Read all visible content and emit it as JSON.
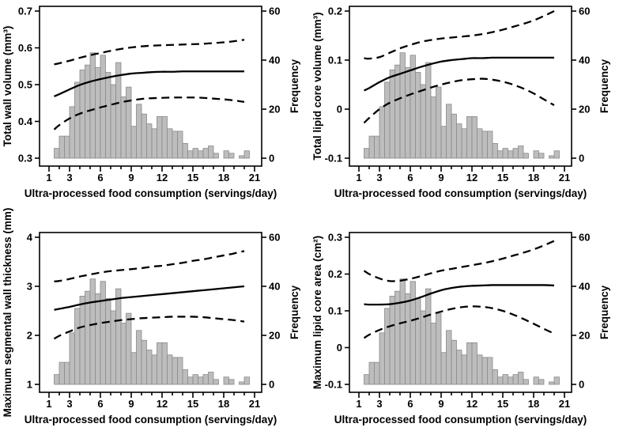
{
  "figure": {
    "xlabel": "Ultra-processed food consumption (servings/day)",
    "x_axis": {
      "lim": [
        1,
        21
      ],
      "major_ticks": [
        1,
        3,
        6,
        9,
        12,
        15,
        18,
        21
      ],
      "minor_tick_step": 1
    },
    "frequency_axis": {
      "label": "Frequency",
      "ticks": [
        0,
        20,
        40,
        60
      ],
      "lim": [
        0,
        60
      ]
    },
    "colors": {
      "bar_fill": "#bdbdbd",
      "bar_stroke": "#8a8a8a",
      "line": "#000000",
      "background": "#ffffff",
      "text": "#000000"
    },
    "grid": "off",
    "legend": "none"
  },
  "histogram": {
    "bin_width": 0.5,
    "centers": [
      1.75,
      2.25,
      2.75,
      3.25,
      3.75,
      4.25,
      4.75,
      5.25,
      5.75,
      6.25,
      6.75,
      7.25,
      7.75,
      8.25,
      8.75,
      9.25,
      9.75,
      10.25,
      10.75,
      11.25,
      11.75,
      12.25,
      12.75,
      13.25,
      13.75,
      14.25,
      14.75,
      15.25,
      15.75,
      16.25,
      16.75,
      17.25,
      18.25,
      18.75,
      19.75,
      20.25
    ],
    "frequencies": [
      4,
      9,
      9,
      21,
      31,
      36,
      38,
      43,
      37,
      42,
      35,
      30,
      39,
      25,
      29,
      13,
      22,
      18,
      14,
      12,
      17,
      17,
      12,
      11,
      11,
      6,
      3,
      4,
      3,
      4,
      5,
      2,
      3,
      2,
      1,
      3
    ]
  },
  "chart_data": [
    {
      "type": "line",
      "position": "top-left",
      "ylabel": "Total wall volume (mm³)",
      "yticks": [
        0.3,
        0.4,
        0.5,
        0.6,
        0.7
      ],
      "ytick_labels": [
        "0.3",
        "0.4",
        "0.5",
        "0.6",
        "0.7"
      ],
      "ylim": [
        0.3,
        0.7
      ],
      "x": [
        1.5,
        2,
        3,
        4,
        5,
        6,
        7,
        8,
        9,
        10,
        11,
        12,
        13,
        14,
        15,
        16,
        17,
        18,
        19,
        20
      ],
      "series": [
        {
          "name": "estimate",
          "line": "solid",
          "y": [
            0.468,
            0.474,
            0.487,
            0.499,
            0.508,
            0.515,
            0.521,
            0.526,
            0.53,
            0.532,
            0.534,
            0.535,
            0.535,
            0.536,
            0.536,
            0.536,
            0.536,
            0.536,
            0.536,
            0.536
          ]
        },
        {
          "name": "upper_ci",
          "line": "dashed",
          "y": [
            0.555,
            0.558,
            0.565,
            0.573,
            0.58,
            0.586,
            0.592,
            0.597,
            0.601,
            0.604,
            0.606,
            0.607,
            0.608,
            0.609,
            0.61,
            0.611,
            0.613,
            0.615,
            0.618,
            0.622
          ]
        },
        {
          "name": "lower_ci",
          "line": "dashed",
          "y": [
            0.378,
            0.39,
            0.408,
            0.421,
            0.43,
            0.438,
            0.445,
            0.452,
            0.457,
            0.461,
            0.463,
            0.464,
            0.465,
            0.465,
            0.465,
            0.464,
            0.462,
            0.46,
            0.457,
            0.453
          ]
        }
      ]
    },
    {
      "type": "line",
      "position": "top-right",
      "ylabel": "Total lipid core volume (mm³)",
      "yticks": [
        -0.1,
        0,
        0.1,
        0.2
      ],
      "ytick_labels": [
        "-0.1",
        "0",
        "0.1",
        "0.2"
      ],
      "ylim": [
        -0.1,
        0.2
      ],
      "x": [
        1.5,
        2,
        3,
        4,
        5,
        6,
        7,
        8,
        9,
        10,
        11,
        12,
        13,
        14,
        15,
        16,
        17,
        18,
        19,
        20
      ],
      "series": [
        {
          "name": "estimate",
          "line": "solid",
          "y": [
            0.038,
            0.043,
            0.055,
            0.065,
            0.072,
            0.079,
            0.086,
            0.092,
            0.097,
            0.1,
            0.102,
            0.104,
            0.104,
            0.105,
            0.105,
            0.105,
            0.105,
            0.105,
            0.105,
            0.105
          ]
        },
        {
          "name": "upper_ci",
          "line": "dashed",
          "y": [
            0.104,
            0.103,
            0.106,
            0.115,
            0.124,
            0.131,
            0.137,
            0.141,
            0.144,
            0.146,
            0.148,
            0.15,
            0.153,
            0.157,
            0.162,
            0.168,
            0.174,
            0.181,
            0.19,
            0.2
          ]
        },
        {
          "name": "lower_ci",
          "line": "dashed",
          "y": [
            -0.028,
            -0.018,
            0.0,
            0.013,
            0.022,
            0.03,
            0.037,
            0.044,
            0.05,
            0.055,
            0.059,
            0.061,
            0.062,
            0.06,
            0.056,
            0.05,
            0.042,
            0.032,
            0.02,
            0.008
          ]
        }
      ]
    },
    {
      "type": "line",
      "position": "bottom-left",
      "ylabel": "Maximum segmental wall thickness (mm)",
      "yticks": [
        1,
        2,
        3,
        4
      ],
      "ytick_labels": [
        "1",
        "2",
        "3",
        "4"
      ],
      "ylim": [
        1,
        4
      ],
      "x": [
        1.5,
        2,
        3,
        4,
        5,
        6,
        7,
        8,
        9,
        10,
        11,
        12,
        13,
        14,
        15,
        16,
        17,
        18,
        19,
        20
      ],
      "series": [
        {
          "name": "estimate",
          "line": "solid",
          "y": [
            2.52,
            2.54,
            2.58,
            2.63,
            2.67,
            2.7,
            2.73,
            2.76,
            2.78,
            2.8,
            2.82,
            2.84,
            2.86,
            2.88,
            2.9,
            2.92,
            2.94,
            2.96,
            2.98,
            3.0
          ]
        },
        {
          "name": "upper_ci",
          "line": "dashed",
          "y": [
            3.1,
            3.11,
            3.15,
            3.2,
            3.24,
            3.28,
            3.31,
            3.33,
            3.35,
            3.37,
            3.4,
            3.42,
            3.45,
            3.48,
            3.52,
            3.55,
            3.59,
            3.63,
            3.67,
            3.72
          ]
        },
        {
          "name": "lower_ci",
          "line": "dashed",
          "y": [
            1.93,
            1.99,
            2.08,
            2.16,
            2.21,
            2.25,
            2.28,
            2.31,
            2.33,
            2.35,
            2.36,
            2.37,
            2.38,
            2.38,
            2.38,
            2.37,
            2.35,
            2.33,
            2.31,
            2.28
          ]
        }
      ]
    },
    {
      "type": "line",
      "position": "bottom-right",
      "ylabel": "Maximum lipid core area (cm²)",
      "yticks": [
        -0.1,
        0,
        0.1,
        0.2,
        0.3
      ],
      "ytick_labels": [
        "-0.1",
        "0",
        "0.1",
        "0.2",
        "0.3"
      ],
      "ylim": [
        -0.1,
        0.3
      ],
      "x": [
        1.5,
        2,
        3,
        4,
        5,
        6,
        7,
        8,
        9,
        10,
        11,
        12,
        13,
        14,
        15,
        16,
        17,
        18,
        19,
        20
      ],
      "series": [
        {
          "name": "estimate",
          "line": "solid",
          "y": [
            0.118,
            0.117,
            0.117,
            0.118,
            0.122,
            0.128,
            0.137,
            0.147,
            0.156,
            0.162,
            0.166,
            0.168,
            0.169,
            0.17,
            0.17,
            0.17,
            0.17,
            0.17,
            0.17,
            0.169
          ]
        },
        {
          "name": "upper_ci",
          "line": "dashed",
          "y": [
            0.209,
            0.2,
            0.188,
            0.181,
            0.182,
            0.187,
            0.194,
            0.202,
            0.209,
            0.214,
            0.219,
            0.224,
            0.229,
            0.235,
            0.242,
            0.25,
            0.258,
            0.267,
            0.278,
            0.29
          ]
        },
        {
          "name": "lower_ci",
          "line": "dashed",
          "y": [
            0.026,
            0.035,
            0.048,
            0.058,
            0.066,
            0.073,
            0.081,
            0.09,
            0.098,
            0.105,
            0.11,
            0.112,
            0.111,
            0.107,
            0.1,
            0.09,
            0.078,
            0.065,
            0.051,
            0.038
          ]
        }
      ]
    }
  ]
}
